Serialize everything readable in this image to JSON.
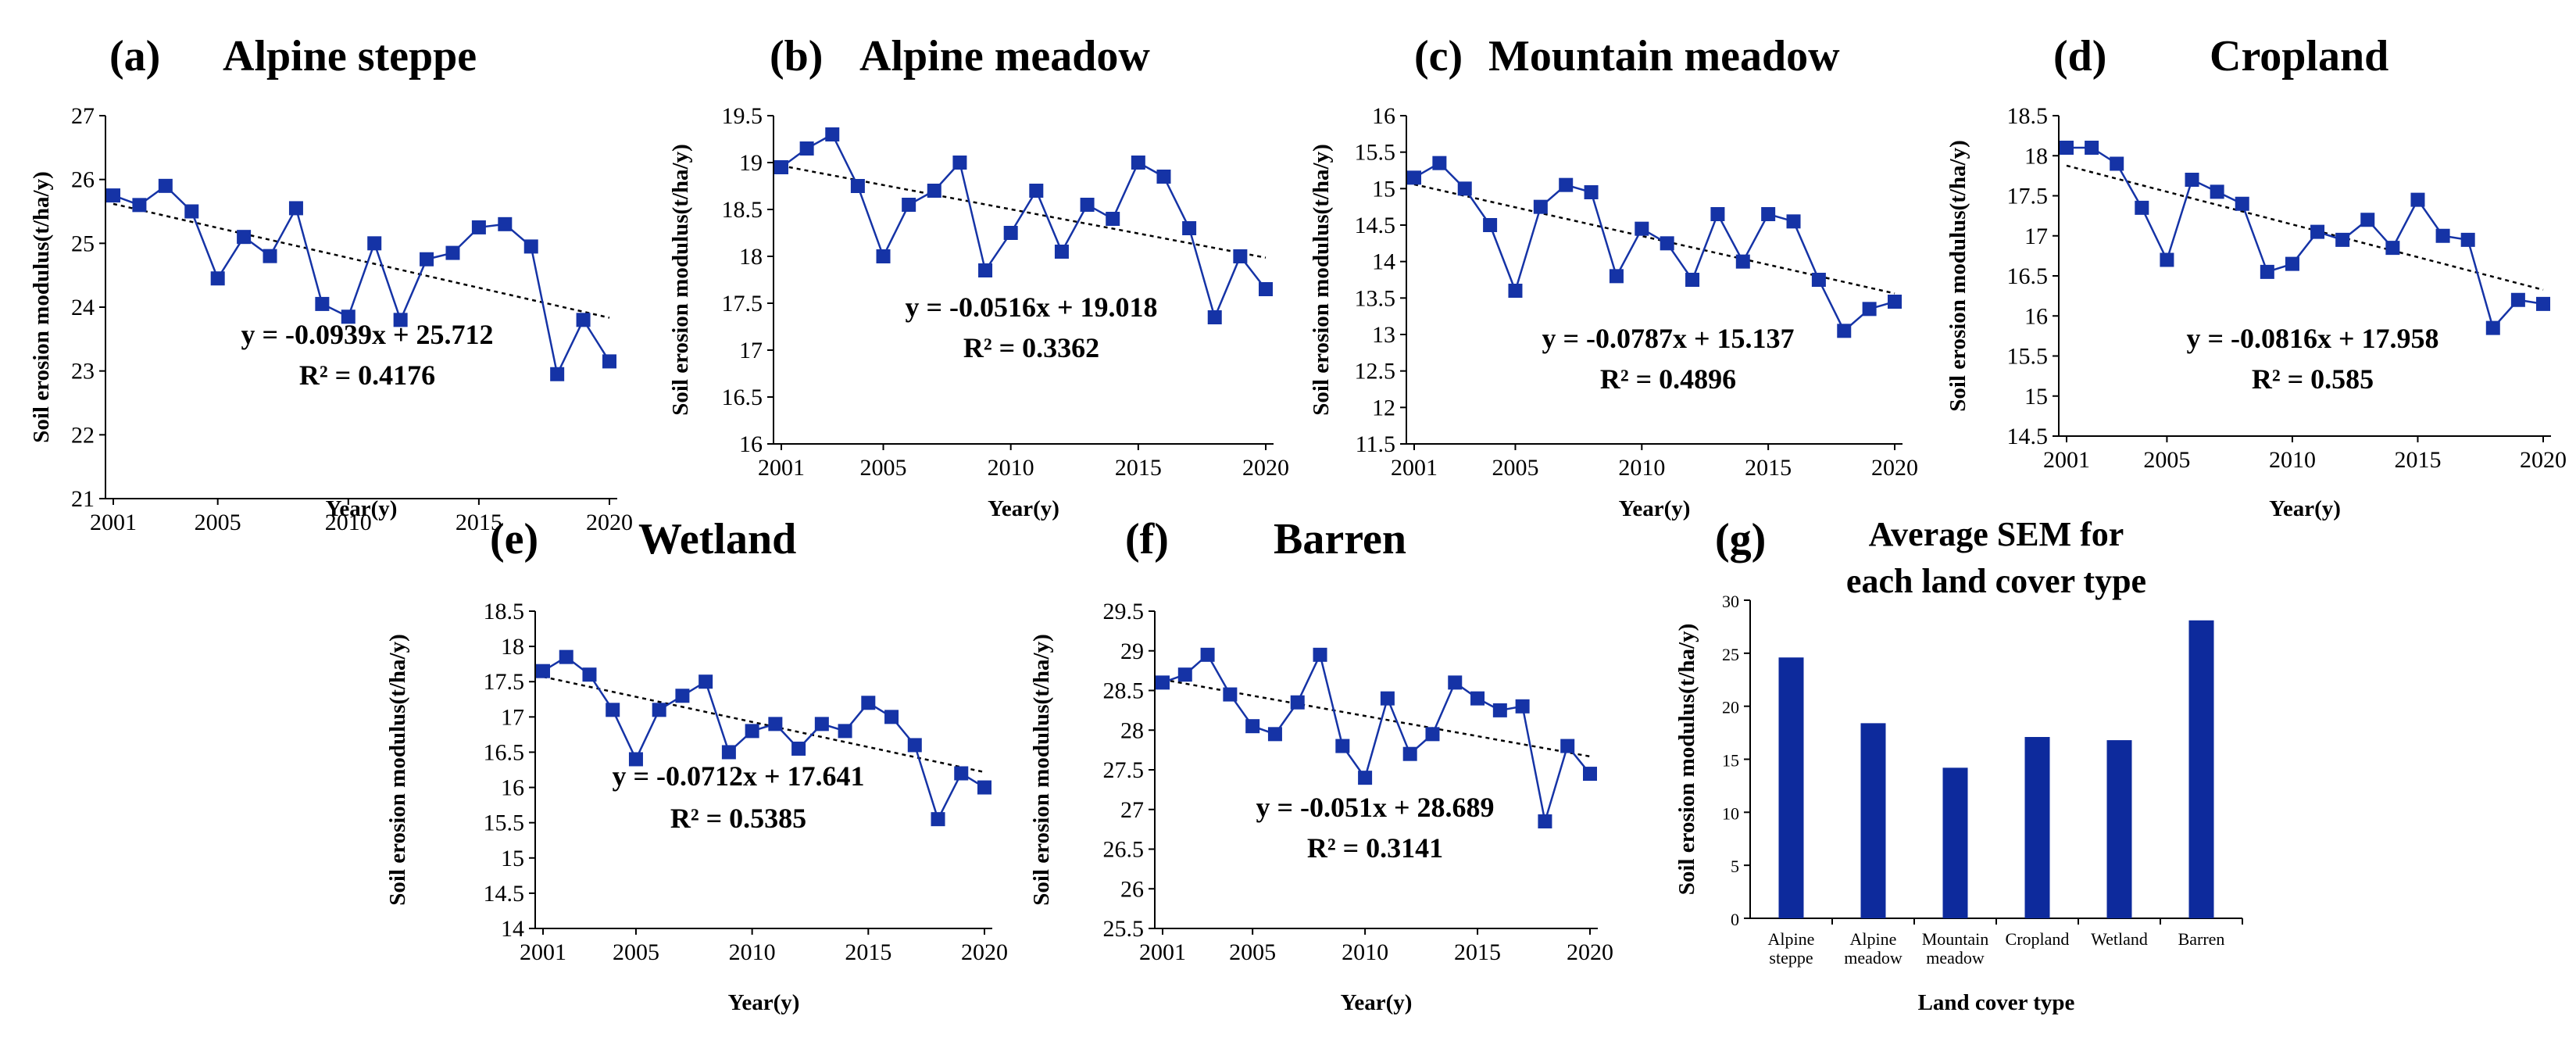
{
  "colors": {
    "series": "#1533a6",
    "marker": "#1533a6",
    "trend": "#000000",
    "bar": "#0d2a9c",
    "axis": "#000000"
  },
  "chart_data": [
    {
      "id": "a",
      "type": "line",
      "label": "(a)",
      "title": "Alpine steppe",
      "xlabel": "Year(y)",
      "ylabel": "Soil erosion modulus(t/ha/y)",
      "x": [
        2001,
        2002,
        2003,
        2004,
        2005,
        2006,
        2007,
        2008,
        2009,
        2010,
        2011,
        2012,
        2013,
        2014,
        2015,
        2016,
        2017,
        2018,
        2019,
        2020
      ],
      "values": [
        25.75,
        25.6,
        25.9,
        25.5,
        24.45,
        25.1,
        24.8,
        25.55,
        24.05,
        23.85,
        25.0,
        23.8,
        24.75,
        24.85,
        25.25,
        25.3,
        24.95,
        22.95,
        23.8,
        23.15
      ],
      "xticks": [
        "2001",
        "2005",
        "2010",
        "2015",
        "2020"
      ],
      "ylim": [
        21,
        27
      ],
      "yticks": [
        21,
        22,
        23,
        24,
        25,
        26,
        27
      ],
      "ytick_labels": [
        "21",
        "22",
        "23",
        "24",
        "25",
        "26",
        "27"
      ],
      "trend": {
        "slope": -0.0939,
        "intercept": 25.712
      },
      "equation": "y = -0.0939x + 25.712",
      "r2": "R² = 0.4176"
    },
    {
      "id": "b",
      "type": "line",
      "label": "(b)",
      "title": "Alpine meadow",
      "xlabel": "Year(y)",
      "ylabel": "Soil erosion modulus(t/ha/y)",
      "x": [
        2001,
        2002,
        2003,
        2004,
        2005,
        2006,
        2007,
        2008,
        2009,
        2010,
        2011,
        2012,
        2013,
        2014,
        2015,
        2016,
        2017,
        2018,
        2019,
        2020
      ],
      "values": [
        18.95,
        19.15,
        19.3,
        18.75,
        18.0,
        18.55,
        18.7,
        19.0,
        17.85,
        18.25,
        18.7,
        18.05,
        18.55,
        18.4,
        19.0,
        18.85,
        18.3,
        17.35,
        18.0,
        17.65
      ],
      "xticks": [
        "2001",
        "2005",
        "2010",
        "2015",
        "2020"
      ],
      "ylim": [
        16,
        19.5
      ],
      "yticks": [
        16,
        16.5,
        17,
        17.5,
        18,
        18.5,
        19,
        19.5
      ],
      "ytick_labels": [
        "16",
        "16.5",
        "17",
        "17.5",
        "18",
        "18.5",
        "19",
        "19.5"
      ],
      "trend": {
        "slope": -0.0516,
        "intercept": 19.018
      },
      "equation": "y = -0.0516x + 19.018",
      "r2": "R² = 0.3362"
    },
    {
      "id": "c",
      "type": "line",
      "label": "(c)",
      "title": "Mountain meadow",
      "xlabel": "Year(y)",
      "ylabel": "Soil erosion modulus(t/ha/y)",
      "x": [
        2001,
        2002,
        2003,
        2004,
        2005,
        2006,
        2007,
        2008,
        2009,
        2010,
        2011,
        2012,
        2013,
        2014,
        2015,
        2016,
        2017,
        2018,
        2019,
        2020
      ],
      "values": [
        15.15,
        15.35,
        15.0,
        14.5,
        13.6,
        14.75,
        15.05,
        14.95,
        13.8,
        14.45,
        14.25,
        13.75,
        14.65,
        14.0,
        14.65,
        14.55,
        13.75,
        13.05,
        13.35,
        13.45
      ],
      "xticks": [
        "2001",
        "2005",
        "2010",
        "2015",
        "2020"
      ],
      "ylim": [
        11.5,
        16
      ],
      "yticks": [
        11.5,
        12,
        12.5,
        13,
        13.5,
        14,
        14.5,
        15,
        15.5,
        16
      ],
      "ytick_labels": [
        "11.5",
        "12",
        "12.5",
        "13",
        "13.5",
        "14",
        "14.5",
        "15",
        "15.5",
        "16"
      ],
      "trend": {
        "slope": -0.0787,
        "intercept": 15.137
      },
      "equation": "y = -0.0787x + 15.137",
      "r2": "R² = 0.4896"
    },
    {
      "id": "d",
      "type": "line",
      "label": "(d)",
      "title": "Cropland",
      "xlabel": "Year(y)",
      "ylabel": "Soil erosion modulus(t/ha/y)",
      "x": [
        2001,
        2002,
        2003,
        2004,
        2005,
        2006,
        2007,
        2008,
        2009,
        2010,
        2011,
        2012,
        2013,
        2014,
        2015,
        2016,
        2017,
        2018,
        2019,
        2020
      ],
      "values": [
        18.1,
        18.1,
        17.9,
        17.35,
        16.7,
        17.7,
        17.55,
        17.4,
        16.55,
        16.65,
        17.05,
        16.95,
        17.2,
        16.85,
        17.45,
        17.0,
        16.95,
        15.85,
        16.2,
        16.15
      ],
      "xticks": [
        "2001",
        "2005",
        "2010",
        "2015",
        "2020"
      ],
      "ylim": [
        14.5,
        18.5
      ],
      "yticks": [
        14.5,
        15,
        15.5,
        16,
        16.5,
        17,
        17.5,
        18,
        18.5
      ],
      "ytick_labels": [
        "14.5",
        "15",
        "15.5",
        "16",
        "16.5",
        "17",
        "17.5",
        "18",
        "18.5"
      ],
      "trend": {
        "slope": -0.0816,
        "intercept": 17.958
      },
      "equation": "y = -0.0816x + 17.958",
      "r2": "R² = 0.585"
    },
    {
      "id": "e",
      "type": "line",
      "label": "(e)",
      "title": "Wetland",
      "xlabel": "Year(y)",
      "ylabel": "Soil erosion modulus(t/ha/y)",
      "x": [
        2001,
        2002,
        2003,
        2004,
        2005,
        2006,
        2007,
        2008,
        2009,
        2010,
        2011,
        2012,
        2013,
        2014,
        2015,
        2016,
        2017,
        2018,
        2019,
        2020
      ],
      "values": [
        17.65,
        17.85,
        17.6,
        17.1,
        16.4,
        17.1,
        17.3,
        17.5,
        16.5,
        16.8,
        16.9,
        16.55,
        16.9,
        16.8,
        17.2,
        17.0,
        16.6,
        15.55,
        16.2,
        16.0
      ],
      "xticks": [
        "2001",
        "2005",
        "2010",
        "2015",
        "2020"
      ],
      "ylim": [
        14,
        18.5
      ],
      "yticks": [
        14,
        14.5,
        15,
        15.5,
        16,
        16.5,
        17,
        17.5,
        18,
        18.5
      ],
      "ytick_labels": [
        "14",
        "14.5",
        "15",
        "15.5",
        "16",
        "16.5",
        "17",
        "17.5",
        "18",
        "18.5"
      ],
      "trend": {
        "slope": -0.0712,
        "intercept": 17.641
      },
      "equation": "y = -0.0712x + 17.641",
      "r2": "R² = 0.5385"
    },
    {
      "id": "f",
      "type": "line",
      "label": "(f)",
      "title": "Barren",
      "xlabel": "Year(y)",
      "ylabel": "Soil erosion modulus(t/ha/y)",
      "x": [
        2001,
        2002,
        2003,
        2004,
        2005,
        2006,
        2007,
        2008,
        2009,
        2010,
        2011,
        2012,
        2013,
        2014,
        2015,
        2016,
        2017,
        2018,
        2019,
        2020
      ],
      "values": [
        28.6,
        28.7,
        28.95,
        28.45,
        28.05,
        27.95,
        28.35,
        28.95,
        27.8,
        27.4,
        28.4,
        27.7,
        27.95,
        28.6,
        28.4,
        28.25,
        28.3,
        26.85,
        27.8,
        27.45
      ],
      "xticks": [
        "2001",
        "2005",
        "2010",
        "2015",
        "2020"
      ],
      "ylim": [
        25.5,
        29.5
      ],
      "yticks": [
        25.5,
        26,
        26.5,
        27,
        27.5,
        28,
        28.5,
        29,
        29.5
      ],
      "ytick_labels": [
        "25.5",
        "26",
        "26.5",
        "27",
        "27.5",
        "28",
        "28.5",
        "29",
        "29.5"
      ],
      "trend": {
        "slope": -0.051,
        "intercept": 28.689
      },
      "equation": "y = -0.051x + 28.689",
      "r2": "R² = 0.3141"
    },
    {
      "id": "g",
      "type": "bar",
      "label": "(g)",
      "title_lines": [
        "Average SEM for",
        "each land cover type"
      ],
      "xlabel": "Land cover type",
      "ylabel": "Soil erosion modulus(t/ha/y)",
      "categories": [
        [
          "Alpine",
          "steppe"
        ],
        [
          "Alpine",
          "meadow"
        ],
        [
          "Mountain",
          "meadow"
        ],
        [
          "Cropland"
        ],
        [
          "Wetland"
        ],
        [
          "Barren"
        ]
      ],
      "values": [
        24.6,
        18.4,
        14.2,
        17.1,
        16.8,
        28.1
      ],
      "ylim": [
        0,
        30
      ],
      "yticks": [
        0,
        5,
        10,
        15,
        20,
        25,
        30
      ],
      "ytick_labels": [
        "0",
        "5",
        "10",
        "15",
        "20",
        "25",
        "30"
      ]
    }
  ]
}
